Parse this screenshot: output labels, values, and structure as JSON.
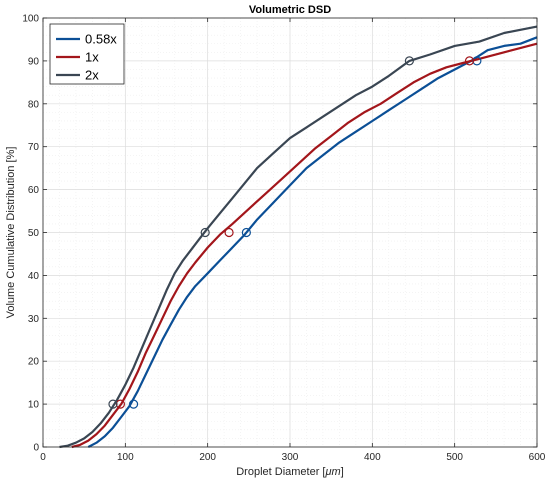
{
  "chart_data": {
    "type": "line",
    "title": "Volumetric DSD",
    "xlabel": "Droplet Diameter [",
    "xlabel_unit": "μm",
    "xlabel_end": "]",
    "ylabel": "Volume Cumulative Distribution [%]",
    "xlim": [
      0,
      600
    ],
    "ylim": [
      0,
      100
    ],
    "xticks": [
      0,
      100,
      200,
      300,
      400,
      500,
      600
    ],
    "yticks": [
      0,
      10,
      20,
      30,
      40,
      50,
      60,
      70,
      80,
      90,
      100
    ],
    "grid": true,
    "minor_grid": true,
    "legend_position": "top-left",
    "series": [
      {
        "name": "0.58x",
        "color": "#0b4f96",
        "x": [
          55,
          65,
          75,
          85,
          95,
          105,
          115,
          125,
          135,
          145,
          155,
          165,
          175,
          185,
          200,
          215,
          230,
          245,
          260,
          280,
          300,
          320,
          340,
          360,
          380,
          400,
          420,
          440,
          460,
          480,
          500,
          520,
          540,
          560,
          580,
          600
        ],
        "y": [
          0,
          1,
          2.5,
          4.5,
          7,
          9.5,
          13,
          17,
          21,
          25,
          28.5,
          32,
          35,
          37.5,
          40.5,
          43.5,
          46.5,
          49.5,
          53,
          57,
          61,
          65,
          68,
          71,
          73.5,
          76,
          78.5,
          81,
          83.5,
          86,
          88,
          90,
          92.5,
          93.5,
          94,
          95.5
        ],
        "markers": [
          {
            "x": 110,
            "y": 10
          },
          {
            "x": 247,
            "y": 50
          },
          {
            "x": 527,
            "y": 90
          }
        ]
      },
      {
        "name": "1x",
        "color": "#a3161b",
        "x": [
          35,
          45,
          55,
          65,
          75,
          85,
          95,
          105,
          115,
          125,
          135,
          145,
          155,
          165,
          175,
          185,
          200,
          215,
          230,
          250,
          270,
          290,
          310,
          330,
          350,
          370,
          390,
          410,
          430,
          450,
          470,
          490,
          510,
          530,
          560,
          600
        ],
        "y": [
          0,
          0.5,
          1.5,
          3,
          5,
          7.5,
          10,
          13.5,
          17.5,
          22,
          26,
          30,
          34,
          37.5,
          40.5,
          43,
          46.5,
          49.5,
          52,
          55.5,
          59,
          62.5,
          66,
          69.5,
          72.5,
          75.5,
          78,
          80,
          82.5,
          85,
          87,
          88.5,
          89.5,
          90.5,
          92,
          94
        ],
        "markers": [
          {
            "x": 94,
            "y": 10
          },
          {
            "x": 226,
            "y": 50
          },
          {
            "x": 518,
            "y": 90
          }
        ]
      },
      {
        "name": "2x",
        "color": "#3a4653",
        "x": [
          20,
          30,
          40,
          50,
          60,
          70,
          80,
          90,
          100,
          110,
          120,
          130,
          140,
          150,
          160,
          170,
          180,
          190,
          200,
          215,
          230,
          245,
          260,
          280,
          300,
          320,
          340,
          360,
          380,
          400,
          420,
          445,
          470,
          500,
          530,
          560,
          600
        ],
        "y": [
          0,
          0.3,
          1,
          2,
          3.5,
          5.5,
          8,
          11,
          14.5,
          18.5,
          23,
          27.5,
          32,
          36.5,
          40.5,
          43.5,
          46,
          48.5,
          51,
          54.5,
          58,
          61.5,
          65,
          68.5,
          72,
          74.5,
          77,
          79.5,
          82,
          84,
          86.5,
          90,
          91.5,
          93.5,
          94.5,
          96.5,
          98
        ],
        "markers": [
          {
            "x": 85,
            "y": 10
          },
          {
            "x": 197,
            "y": 50
          },
          {
            "x": 445,
            "y": 90
          }
        ]
      }
    ]
  }
}
